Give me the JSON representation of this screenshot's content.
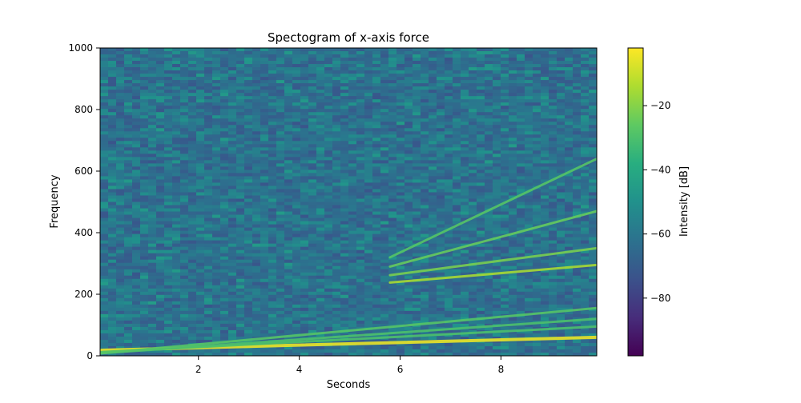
{
  "chart_data": {
    "type": "heatmap",
    "title": "Spectogram of x-axis force",
    "xlabel": "Seconds",
    "ylabel": "Frequency",
    "xlim": [
      0.05,
      9.9
    ],
    "ylim": [
      0,
      1000
    ],
    "x_ticks": [
      2,
      4,
      6,
      8
    ],
    "x_tick_labels": [
      "2",
      "4",
      "6",
      "8"
    ],
    "y_ticks": [
      0,
      200,
      400,
      600,
      800,
      1000
    ],
    "y_tick_labels": [
      "0",
      "200",
      "400",
      "600",
      "800",
      "1000"
    ],
    "colormap": "viridis",
    "colorbar": {
      "label": "Intensity [dB]",
      "range": [
        -98,
        -2
      ],
      "ticks": [
        -20,
        -40,
        -60,
        -80
      ],
      "tick_labels": [
        "−20",
        "−40",
        "−60",
        "−80"
      ]
    },
    "ridges": [
      {
        "start": [
          0.05,
          18
        ],
        "end": [
          9.9,
          60
        ],
        "intensity_db": -5
      },
      {
        "start": [
          0.05,
          12
        ],
        "end": [
          9.9,
          95
        ],
        "intensity_db": -30
      },
      {
        "start": [
          0.05,
          8
        ],
        "end": [
          9.9,
          120
        ],
        "intensity_db": -30
      },
      {
        "start": [
          0.05,
          8
        ],
        "end": [
          9.9,
          155
        ],
        "intensity_db": -28
      },
      {
        "start": [
          5.8,
          238
        ],
        "end": [
          9.9,
          295
        ],
        "intensity_db": -15
      },
      {
        "start": [
          5.8,
          262
        ],
        "end": [
          9.9,
          350
        ],
        "intensity_db": -22
      },
      {
        "start": [
          5.8,
          290
        ],
        "end": [
          9.9,
          470
        ],
        "intensity_db": -25
      },
      {
        "start": [
          5.8,
          320
        ],
        "end": [
          9.9,
          640
        ],
        "intensity_db": -28
      }
    ],
    "background_db": [
      -80,
      -45
    ]
  }
}
